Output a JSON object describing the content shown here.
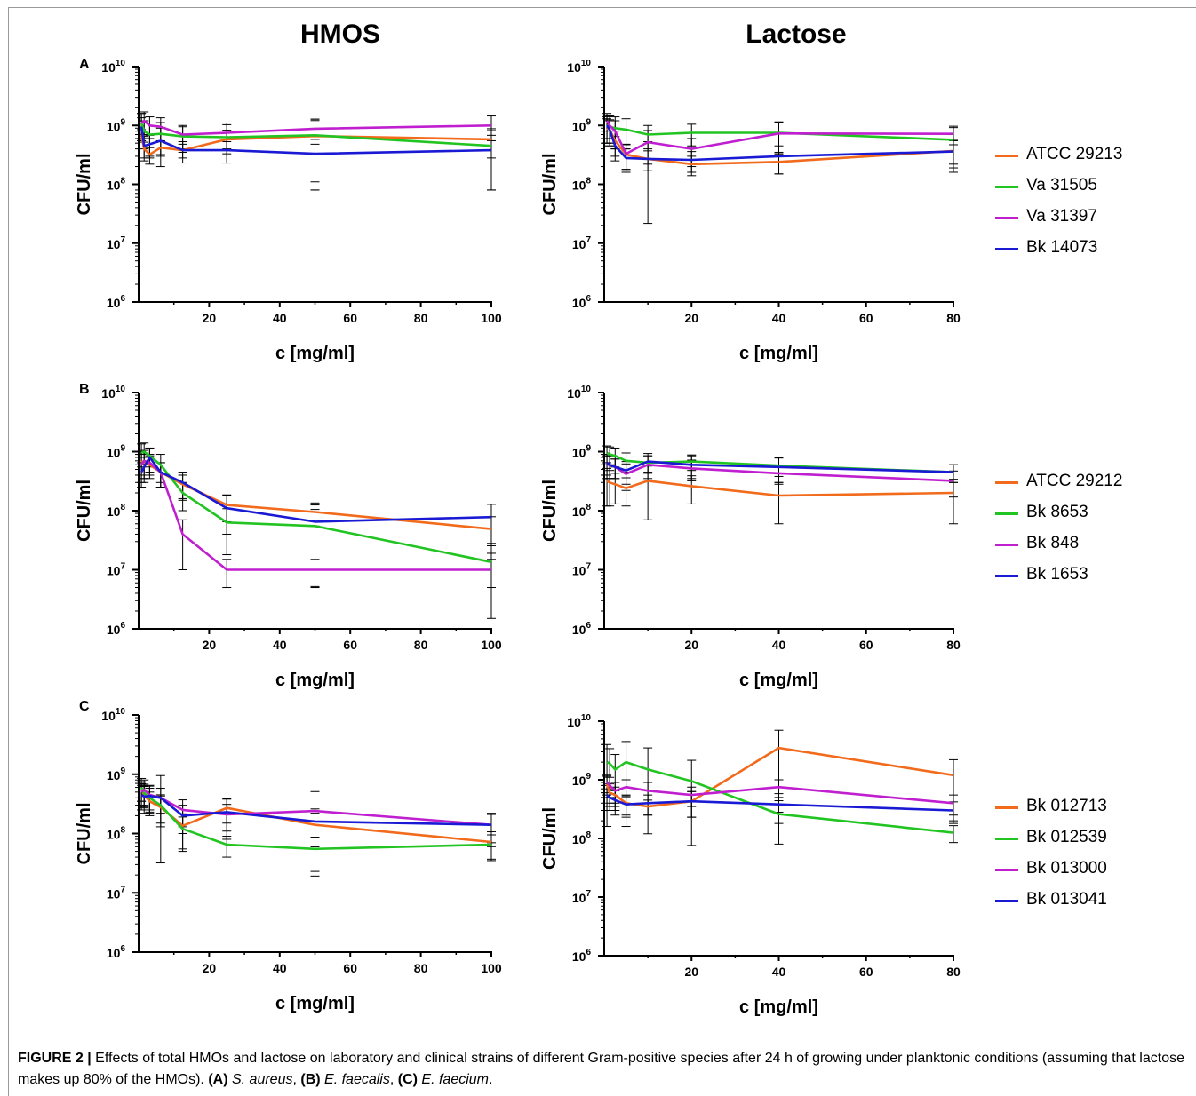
{
  "col_titles": {
    "left": "HMOS",
    "right": "Lactose"
  },
  "panels": [
    {
      "letter": "A",
      "legend": [
        "ATCC 29213",
        "Va 31505",
        "Va 31397",
        "Bk 14073"
      ]
    },
    {
      "letter": "B",
      "legend": [
        "ATCC 29212",
        "Bk 8653",
        "Bk 848",
        "Bk 1653"
      ]
    },
    {
      "letter": "C",
      "legend": [
        "Bk 012713",
        "Bk 012539",
        "Bk 013000",
        "Bk 013041"
      ]
    }
  ],
  "series_colors": [
    "#f26a1b",
    "#22c422",
    "#c01fd0",
    "#1a1ad4"
  ],
  "caption": {
    "label": "FIGURE 2 |",
    "text": "Effects of total HMOs and lactose on laboratory and clinical strains of different Gram-positive species after 24 h of growing under planktonic conditions (assuming that lactose makes up 80% of the HMOs).",
    "a_label": "(A)",
    "a_species": "S. aureus",
    "b_label": "(B)",
    "b_species": "E. faecalis",
    "c_label": "(C)",
    "c_species": "E. faecium",
    "sep1": ", ",
    "sep2": ", ",
    "end": "."
  },
  "chart_data": [
    {
      "id": "A-HMOS",
      "type": "line",
      "yscale": "log",
      "xlabel": "c [mg/ml]",
      "ylabel": "CFU/ml",
      "xlim": [
        0,
        100
      ],
      "xticks": [
        20,
        40,
        60,
        80,
        100
      ],
      "ylim_exp": [
        6,
        10
      ],
      "yticks_exp": [
        6,
        7,
        8,
        9,
        10
      ],
      "x": [
        0.78,
        1.56,
        3.125,
        6.25,
        12.5,
        25,
        50,
        100
      ],
      "series": [
        {
          "name": "ATCC 29213",
          "values": [
            700000000.0,
            400000000.0,
            320000000.0,
            420000000.0,
            380000000.0,
            580000000.0,
            660000000.0,
            580000000.0
          ],
          "err": [
            150000000.0,
            120000000.0,
            100000000.0,
            120000000.0,
            100000000.0,
            250000000.0,
            550000000.0,
            300000000.0
          ]
        },
        {
          "name": "Va 31505",
          "values": [
            1100000000.0,
            800000000.0,
            700000000.0,
            720000000.0,
            650000000.0,
            630000000.0,
            680000000.0,
            450000000.0
          ],
          "err": [
            500000000.0,
            400000000.0,
            400000000.0,
            400000000.0,
            300000000.0,
            400000000.0,
            600000000.0,
            370000000.0
          ]
        },
        {
          "name": "Va 31397",
          "values": [
            1100000000.0,
            1200000000.0,
            1000000000.0,
            950000000.0,
            700000000.0,
            750000000.0,
            880000000.0,
            1000000000.0
          ],
          "err": [
            500000000.0,
            500000000.0,
            400000000.0,
            400000000.0,
            300000000.0,
            350000000.0,
            400000000.0,
            450000000.0
          ]
        },
        {
          "name": "Bk 14073",
          "values": [
            950000000.0,
            450000000.0,
            480000000.0,
            550000000.0,
            380000000.0,
            380000000.0,
            330000000.0,
            380000000.0
          ],
          "err": [
            400000000.0,
            200000000.0,
            200000000.0,
            350000000.0,
            150000000.0,
            150000000.0,
            250000000.0,
            300000000.0
          ]
        }
      ]
    },
    {
      "id": "A-Lactose",
      "type": "line",
      "yscale": "log",
      "xlabel": "c [mg/ml]",
      "ylabel": "CFU/ml",
      "xlim": [
        0,
        80
      ],
      "xticks": [
        20,
        40,
        60,
        80
      ],
      "ylim_exp": [
        6,
        10
      ],
      "yticks_exp": [
        6,
        7,
        8,
        9,
        10
      ],
      "x": [
        0.625,
        1.25,
        2.5,
        5,
        10,
        20,
        40,
        80
      ],
      "series": [
        {
          "name": "ATCC 29213",
          "values": [
            900000000.0,
            850000000.0,
            550000000.0,
            320000000.0,
            270000000.0,
            220000000.0,
            240000000.0,
            370000000.0
          ],
          "err": [
            400000000.0,
            350000000.0,
            250000000.0,
            150000000.0,
            100000000.0,
            80000000.0,
            90000000.0,
            180000000.0
          ]
        },
        {
          "name": "Va 31505",
          "values": [
            1000000000.0,
            950000000.0,
            900000000.0,
            850000000.0,
            700000000.0,
            750000000.0,
            750000000.0,
            570000000.0
          ],
          "err": [
            500000000.0,
            500000000.0,
            500000000.0,
            450000000.0,
            300000000.0,
            300000000.0,
            400000000.0,
            350000000.0
          ]
        },
        {
          "name": "Va 31397",
          "values": [
            1200000000.0,
            1000000000.0,
            800000000.0,
            330000000.0,
            520000000.0,
            400000000.0,
            730000000.0,
            720000000.0
          ],
          "err": [
            400000000.0,
            500000000.0,
            400000000.0,
            150000000.0,
            300000000.0,
            200000000.0,
            400000000.0,
            250000000.0
          ]
        },
        {
          "name": "Bk 14073",
          "values": [
            1000000000.0,
            850000000.0,
            450000000.0,
            280000000.0,
            270000000.0,
            260000000.0,
            300000000.0,
            360000000.0
          ],
          "err": [
            400000000.0,
            400000000.0,
            200000000.0,
            120000000.0,
            260000000.0,
            100000000.0,
            150000000.0,
            200000000.0
          ]
        }
      ]
    },
    {
      "id": "B-HMOS",
      "type": "line",
      "yscale": "log",
      "xlabel": "c [mg/ml]",
      "ylabel": "CFU/ml",
      "xlim": [
        0,
        100
      ],
      "xticks": [
        20,
        40,
        60,
        80,
        100
      ],
      "ylim_exp": [
        6,
        10
      ],
      "yticks_exp": [
        6,
        7,
        8,
        9,
        10
      ],
      "x": [
        0.78,
        1.56,
        3.125,
        6.25,
        12.5,
        25,
        50,
        100
      ],
      "series": [
        {
          "name": "ATCC 29212",
          "values": [
            700000000.0,
            650000000.0,
            600000000.0,
            450000000.0,
            280000000.0,
            125000000.0,
            95000000.0,
            49000000.0
          ],
          "err": [
            300000000.0,
            300000000.0,
            250000000.0,
            200000000.0,
            120000000.0,
            60000000.0,
            40000000.0,
            30000000.0
          ]
        },
        {
          "name": "Bk 8653",
          "values": [
            950000000.0,
            1000000000.0,
            850000000.0,
            600000000.0,
            200000000.0,
            63000000.0,
            55000000.0,
            13500000.0
          ],
          "err": [
            400000000.0,
            400000000.0,
            300000000.0,
            300000000.0,
            100000000.0,
            45000000.0,
            50000000.0,
            12000000.0
          ]
        },
        {
          "name": "Bk 848",
          "values": [
            600000000.0,
            700000000.0,
            650000000.0,
            450000000.0,
            40000000.0,
            10000000.0,
            10000000.0,
            10000000.0
          ],
          "err": [
            300000000.0,
            350000000.0,
            250000000.0,
            200000000.0,
            30000000.0,
            5000000.0,
            5000000.0,
            5000000.0
          ]
        },
        {
          "name": "Bk 1653",
          "values": [
            450000000.0,
            550000000.0,
            800000000.0,
            450000000.0,
            300000000.0,
            110000000.0,
            65000000.0,
            78000000.0
          ],
          "err": [
            200000000.0,
            250000000.0,
            350000000.0,
            200000000.0,
            150000000.0,
            70000000.0,
            60000000.0,
            50000000.0
          ]
        }
      ]
    },
    {
      "id": "B-Lactose",
      "type": "line",
      "yscale": "log",
      "xlabel": "c [mg/ml]",
      "ylabel": "CFU/ml",
      "xlim": [
        0,
        80
      ],
      "xticks": [
        20,
        40,
        60,
        80
      ],
      "ylim_exp": [
        6,
        10
      ],
      "yticks_exp": [
        6,
        7,
        8,
        9,
        10
      ],
      "x": [
        0.625,
        1.25,
        2.5,
        5,
        10,
        20,
        40,
        80
      ],
      "series": [
        {
          "name": "ATCC 29212",
          "values": [
            320000000.0,
            300000000.0,
            280000000.0,
            240000000.0,
            320000000.0,
            260000000.0,
            180000000.0,
            200000000.0
          ],
          "err": [
            200000000.0,
            180000000.0,
            150000000.0,
            120000000.0,
            250000000.0,
            130000000.0,
            120000000.0,
            140000000.0
          ]
        },
        {
          "name": "Bk 8653",
          "values": [
            950000000.0,
            900000000.0,
            850000000.0,
            700000000.0,
            650000000.0,
            680000000.0,
            580000000.0,
            450000000.0
          ],
          "err": [
            300000000.0,
            300000000.0,
            300000000.0,
            250000000.0,
            200000000.0,
            200000000.0,
            200000000.0,
            150000000.0
          ]
        },
        {
          "name": "Bk 848",
          "values": [
            600000000.0,
            600000000.0,
            550000000.0,
            420000000.0,
            600000000.0,
            520000000.0,
            430000000.0,
            320000000.0
          ],
          "err": [
            250000000.0,
            250000000.0,
            200000000.0,
            200000000.0,
            250000000.0,
            200000000.0,
            150000000.0,
            150000000.0
          ]
        },
        {
          "name": "Bk 1653",
          "values": [
            650000000.0,
            600000000.0,
            550000000.0,
            480000000.0,
            680000000.0,
            600000000.0,
            550000000.0,
            450000000.0
          ],
          "err": [
            250000000.0,
            250000000.0,
            200000000.0,
            200000000.0,
            250000000.0,
            250000000.0,
            250000000.0,
            150000000.0
          ]
        }
      ]
    },
    {
      "id": "C-HMOS",
      "type": "line",
      "yscale": "log",
      "xlabel": "c [mg/ml]",
      "ylabel": "CFU/ml",
      "xlim": [
        0,
        100
      ],
      "xticks": [
        20,
        40,
        60,
        80,
        100
      ],
      "ylim_exp": [
        6,
        10
      ],
      "yticks_exp": [
        6,
        7,
        8,
        9,
        10
      ],
      "x": [
        0.78,
        1.56,
        3.125,
        6.25,
        12.5,
        25,
        50,
        100
      ],
      "series": [
        {
          "name": "Bk 012713",
          "values": [
            550000000.0,
            450000000.0,
            350000000.0,
            280000000.0,
            135000000.0,
            270000000.0,
            140000000.0,
            72000000.0
          ],
          "err": [
            200000000.0,
            180000000.0,
            150000000.0,
            150000000.0,
            80000000.0,
            120000000.0,
            80000000.0,
            35000000.0
          ]
        },
        {
          "name": "Bk 012539",
          "values": [
            600000000.0,
            480000000.0,
            400000000.0,
            300000000.0,
            120000000.0,
            65000000.0,
            55000000.0,
            65000000.0
          ],
          "err": [
            250000000.0,
            200000000.0,
            180000000.0,
            150000000.0,
            70000000.0,
            25000000.0,
            32000000.0,
            30000000.0
          ]
        },
        {
          "name": "Bk 013000",
          "values": [
            500000000.0,
            550000000.0,
            450000000.0,
            400000000.0,
            250000000.0,
            210000000.0,
            240000000.0,
            140000000.0
          ],
          "err": [
            200000000.0,
            250000000.0,
            200000000.0,
            550000000.0,
            120000000.0,
            100000000.0,
            270000000.0,
            80000000.0
          ]
        },
        {
          "name": "Bk 013041",
          "values": [
            450000000.0,
            420000000.0,
            430000000.0,
            400000000.0,
            200000000.0,
            230000000.0,
            160000000.0,
            140000000.0
          ],
          "err": [
            200000000.0,
            200000000.0,
            200000000.0,
            180000000.0,
            100000000.0,
            150000000.0,
            100000000.0,
            70000000.0
          ]
        }
      ]
    },
    {
      "id": "C-Lactose",
      "type": "line",
      "yscale": "log",
      "xlabel": "c [mg/ml]",
      "ylabel": "CFU/ml",
      "xlim": [
        0,
        80
      ],
      "xticks": [
        20,
        40,
        60,
        80
      ],
      "ylim_exp": [
        6,
        10
      ],
      "yticks_exp": [
        6,
        7,
        8,
        9,
        10
      ],
      "x": [
        0.625,
        1.25,
        2.5,
        5,
        10,
        20,
        40,
        80
      ],
      "series": [
        {
          "name": "Bk 012713",
          "values": [
            850000000.0,
            600000000.0,
            550000000.0,
            400000000.0,
            350000000.0,
            430000000.0,
            3500000000.0,
            1200000000.0
          ],
          "err": [
            300000000.0,
            250000000.0,
            200000000.0,
            150000000.0,
            100000000.0,
            200000000.0,
            3500000000.0,
            1000000000.0
          ]
        },
        {
          "name": "Bk 012539",
          "values": [
            2000000000.0,
            1900000000.0,
            1500000000.0,
            2000000000.0,
            1500000000.0,
            950000000.0,
            260000000.0,
            125000000.0
          ],
          "err": [
            2000000000.0,
            1500000000.0,
            1200000000.0,
            2500000000.0,
            2000000000.0,
            1200000000.0,
            180000000.0,
            40000000.0
          ]
        },
        {
          "name": "Bk 013000",
          "values": [
            900000000.0,
            800000000.0,
            650000000.0,
            750000000.0,
            650000000.0,
            550000000.0,
            750000000.0,
            400000000.0
          ],
          "err": [
            300000000.0,
            300000000.0,
            250000000.0,
            250000000.0,
            250000000.0,
            200000000.0,
            250000000.0,
            150000000.0
          ]
        },
        {
          "name": "Bk 013041",
          "values": [
            550000000.0,
            500000000.0,
            450000000.0,
            380000000.0,
            400000000.0,
            430000000.0,
            380000000.0,
            300000000.0
          ],
          "err": [
            250000000.0,
            200000000.0,
            200000000.0,
            150000000.0,
            150000000.0,
            200000000.0,
            200000000.0,
            120000000.0
          ]
        }
      ]
    }
  ]
}
